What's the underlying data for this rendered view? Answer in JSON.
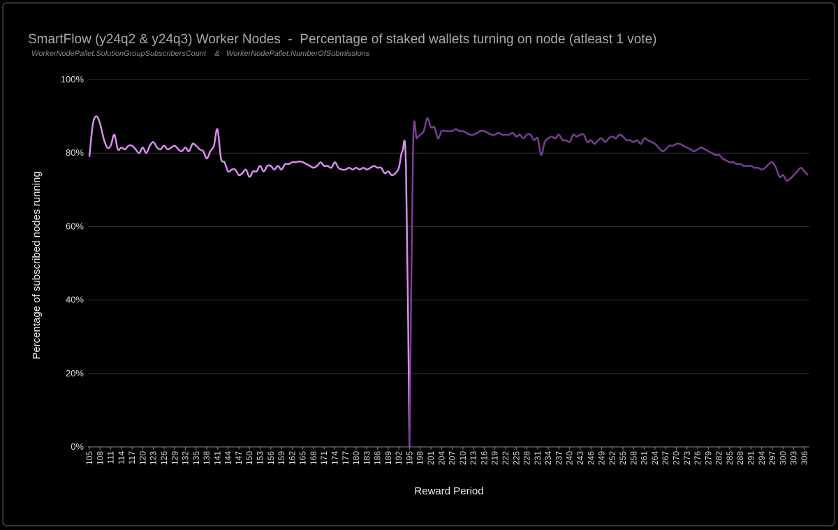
{
  "chart_data": {
    "type": "line",
    "title": "SmartFlow (y24q2 & y24q3) Worker Nodes  -  Percentage of staked wallets turning on node (atleast 1 vote)",
    "subtitle": "WorkerNodePallet.SolutionGroupSubscribersCount    &   WorkerNodePallet.NumberOfSubmissions",
    "x_label": "Reward Period",
    "y_label": "Percentage of subscribed nodes running",
    "xlim": [
      105,
      307
    ],
    "xticks": [
      105,
      108,
      111,
      114,
      117,
      120,
      123,
      126,
      129,
      132,
      135,
      138,
      141,
      144,
      147,
      150,
      153,
      156,
      159,
      162,
      165,
      168,
      171,
      174,
      177,
      180,
      183,
      186,
      189,
      192,
      195,
      198,
      201,
      204,
      207,
      210,
      213,
      216,
      219,
      222,
      225,
      228,
      231,
      234,
      237,
      240,
      243,
      246,
      249,
      252,
      255,
      258,
      261,
      264,
      267,
      270,
      273,
      276,
      279,
      282,
      285,
      288,
      291,
      294,
      297,
      300,
      303,
      306
    ],
    "ylim": [
      0,
      100
    ],
    "yticks": [
      {
        "value": 0,
        "label": "0%"
      },
      {
        "value": 20,
        "label": "20%"
      },
      {
        "value": 40,
        "label": "40%"
      },
      {
        "value": 60,
        "label": "60%"
      },
      {
        "value": 80,
        "label": "80%"
      },
      {
        "value": 100,
        "label": "100%"
      }
    ],
    "grid": true,
    "series": [
      {
        "color": "#d98cf0",
        "x": [
          105,
          106,
          107,
          108,
          109,
          110,
          111,
          112,
          113,
          114,
          115,
          116,
          117,
          118,
          119,
          120,
          121,
          122,
          123,
          124,
          125,
          126,
          127,
          128,
          129,
          130,
          131,
          132,
          133,
          134,
          135,
          136,
          137,
          138,
          139,
          140,
          141,
          142,
          143,
          144,
          145,
          146,
          147,
          148,
          149,
          150,
          151,
          152,
          153,
          154,
          155,
          156,
          157,
          158,
          159,
          160,
          161,
          162,
          163,
          164,
          165,
          166,
          167,
          168,
          169,
          170,
          171,
          172,
          173,
          174,
          175,
          176,
          177,
          178,
          179,
          180,
          181,
          182,
          183,
          184,
          185,
          186,
          187,
          188,
          189,
          190,
          191,
          192,
          193,
          194,
          195
        ],
        "values": [
          79,
          88,
          90,
          88,
          84,
          81.5,
          82,
          85,
          81,
          81.5,
          81,
          82,
          82,
          81,
          80,
          81.5,
          80,
          82,
          83,
          81.5,
          81,
          82,
          81,
          81.5,
          82,
          81,
          80.5,
          81.5,
          80.5,
          82.5,
          82,
          81,
          80.5,
          78.5,
          80.5,
          82,
          86.5,
          78.5,
          77.5,
          75,
          75.5,
          75.5,
          74,
          74.5,
          75.5,
          73.5,
          75,
          75,
          76.5,
          75,
          76.5,
          76.5,
          75.5,
          76.5,
          75.5,
          77,
          77,
          77.5,
          77.5,
          77.7,
          77.5,
          77,
          76.5,
          76,
          76.5,
          77.5,
          76.5,
          76.5,
          76,
          77.5,
          76,
          75.5,
          75.5,
          76,
          75.5,
          76,
          75.5,
          76,
          75.5,
          76,
          76.5,
          76,
          76,
          74.5,
          75,
          74,
          74.5,
          76,
          80.5,
          76,
          0
        ]
      },
      {
        "color": "#7a3e96",
        "x": [
          195,
          196,
          197,
          198,
          199,
          200,
          201,
          202,
          203,
          204,
          205,
          206,
          207,
          208,
          209,
          210,
          211,
          212,
          213,
          214,
          215,
          216,
          217,
          218,
          219,
          220,
          221,
          222,
          223,
          224,
          225,
          226,
          227,
          228,
          229,
          230,
          231,
          232,
          233,
          234,
          235,
          236,
          237,
          238,
          239,
          240,
          241,
          242,
          243,
          244,
          245,
          246,
          247,
          248,
          249,
          250,
          251,
          252,
          253,
          254,
          255,
          256,
          257,
          258,
          259,
          260,
          261,
          262,
          263,
          264,
          265,
          266,
          267,
          268,
          269,
          270,
          271,
          272,
          273,
          274,
          275,
          276,
          277,
          278,
          279,
          280,
          281,
          282,
          283,
          284,
          285,
          286,
          287,
          288,
          289,
          290,
          291,
          292,
          293,
          294,
          295,
          296,
          297,
          298,
          299,
          300,
          301,
          302,
          303,
          304,
          305,
          306,
          307
        ],
        "values": [
          0,
          82,
          84,
          85,
          86,
          89.5,
          87,
          87,
          84,
          86,
          86,
          86,
          86,
          86.5,
          86,
          86,
          85.5,
          85,
          85,
          85.5,
          86,
          86,
          85.5,
          85,
          85,
          85.5,
          85,
          85,
          85,
          85.5,
          84.5,
          85,
          84,
          85,
          85,
          83.5,
          84,
          79.5,
          83,
          84,
          84.5,
          84,
          85,
          83.5,
          83.5,
          83,
          85,
          84.5,
          85,
          85,
          83,
          83.5,
          82.5,
          83.5,
          84,
          83,
          84,
          84.5,
          84,
          85,
          84.5,
          83.5,
          83.5,
          83,
          83.5,
          82.5,
          84,
          83.5,
          83,
          82.5,
          81.5,
          80.5,
          81,
          82,
          82,
          82.5,
          82.5,
          82,
          81.5,
          81,
          80.5,
          81,
          81.5,
          81,
          80.5,
          80,
          79.5,
          79.5,
          78.5,
          78,
          77.5,
          77.5,
          77,
          77,
          76.5,
          76.5,
          76.5,
          76,
          76,
          75.5,
          76,
          77,
          77.5,
          76,
          73.5,
          74,
          72.5,
          73,
          74,
          75,
          76,
          75,
          74
        ]
      }
    ]
  }
}
